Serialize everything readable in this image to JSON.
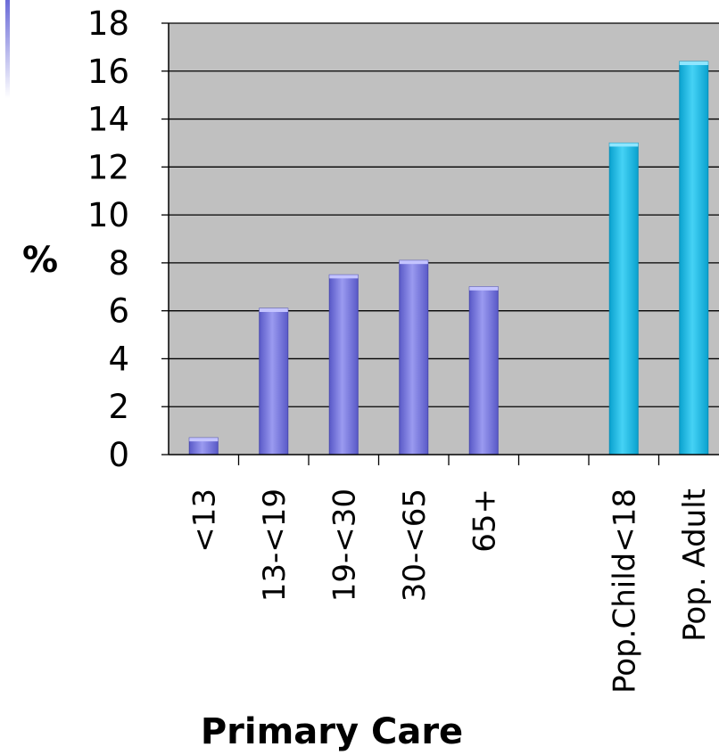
{
  "chart_data": {
    "type": "bar",
    "title": "",
    "xlabel": "Primary Care",
    "ylabel": "%",
    "ylim": [
      0,
      18
    ],
    "yticks": [
      0,
      2,
      4,
      6,
      8,
      10,
      12,
      14,
      16,
      18
    ],
    "grid": true,
    "legend": "none",
    "categories": [
      "<13",
      "13-<19",
      "19-<30",
      "30-<65",
      "65+",
      "",
      "Pop.Child<18",
      "Pop. Adult"
    ],
    "values": [
      0.7,
      6.1,
      7.5,
      8.1,
      7.0,
      null,
      13.0,
      16.4
    ],
    "bar_colors": [
      "#7575e0",
      "#7575e0",
      "#7575e0",
      "#7575e0",
      "#7575e0",
      "",
      "#1fc0ea",
      "#1fc0ea"
    ],
    "plot_background": "#c0c0c0",
    "gridline_color": "#000000"
  }
}
